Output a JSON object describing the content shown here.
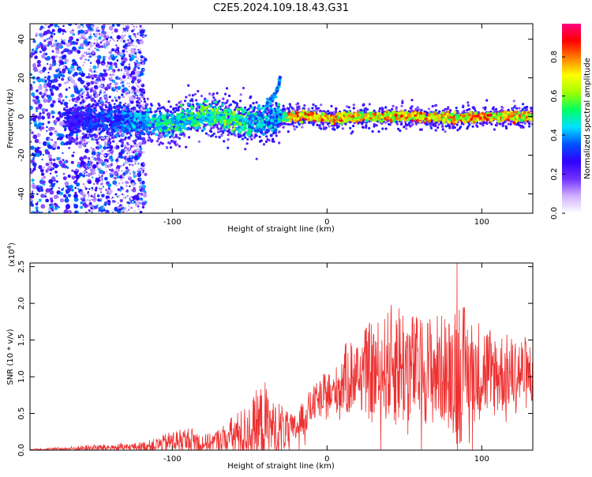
{
  "title": "C2E5.2024.109.18.43.G31",
  "chart_data": [
    {
      "type": "heatmap",
      "title": "C2E5.2024.109.18.43.G31",
      "xlabel": "Height of straight line (km)",
      "ylabel": "Frequency (Hz)",
      "xlim": [
        -192,
        133
      ],
      "ylim": [
        -50,
        48
      ],
      "x_ticks": [
        -100,
        0,
        100
      ],
      "y_ticks": [
        -40,
        -20,
        0,
        20,
        40
      ],
      "colorbar": {
        "label": "Normalized spectral amplitude",
        "range": [
          0,
          0.97
        ],
        "ticks": [
          "0.0",
          "0.2",
          "0.4",
          "0.6",
          "0.8"
        ],
        "colormap": [
          "#ffffff",
          "#d0b0ff",
          "#7030ff",
          "#3000ff",
          "#0050ff",
          "#00e0ff",
          "#00ff60",
          "#a0ff00",
          "#ffff00",
          "#ff8000",
          "#ff0000",
          "#ff0080"
        ]
      },
      "ridge": {
        "x": [
          -165,
          -150,
          -135,
          -120,
          -105,
          -90,
          -75,
          -60,
          -45,
          -35,
          -30,
          -25,
          -10,
          0,
          20,
          40,
          60,
          80,
          100,
          120,
          133
        ],
        "freq": [
          -2,
          -1,
          -2,
          -2,
          -4,
          -1,
          1,
          -1,
          -3,
          -2,
          0,
          0,
          0,
          -1,
          0,
          0,
          0,
          -1,
          0,
          0,
          0
        ],
        "amplitude": [
          0.3,
          0.35,
          0.4,
          0.45,
          0.55,
          0.55,
          0.6,
          0.6,
          0.5,
          0.45,
          0.5,
          0.85,
          0.9,
          0.85,
          0.8,
          0.85,
          0.85,
          0.8,
          0.85,
          0.85,
          0.8
        ]
      },
      "spur": {
        "x": [
          -40,
          -33,
          -30
        ],
        "freq": [
          5,
          12,
          20
        ]
      }
    },
    {
      "type": "line",
      "xlabel": "Height of straight line (km)",
      "ylabel": "SNR (10 * v/v)",
      "y_multiplier": "(x10^4)",
      "xlim": [
        -192,
        133
      ],
      "ylim": [
        0,
        2.55
      ],
      "x_ticks": [
        -100,
        0,
        100
      ],
      "y_ticks": [
        "0.0",
        "0.5",
        "1.0",
        "1.5",
        "2.0",
        "2.5"
      ],
      "color": "#ee3030",
      "envelope": {
        "x": [
          -192,
          -170,
          -150,
          -130,
          -120,
          -110,
          -100,
          -90,
          -85,
          -80,
          -75,
          -70,
          -65,
          -60,
          -55,
          -50,
          -45,
          -40,
          -37,
          -35,
          -30,
          -25,
          -20,
          -15,
          -10,
          -5,
          0,
          5,
          10,
          15,
          20,
          25,
          30,
          35,
          40,
          45,
          50,
          60,
          70,
          80,
          84,
          90,
          100,
          110,
          120,
          125,
          133
        ],
        "base": [
          0.01,
          0.02,
          0.03,
          0.04,
          0.05,
          0.07,
          0.12,
          0.14,
          0.12,
          0.1,
          0.11,
          0.14,
          0.17,
          0.2,
          0.22,
          0.26,
          0.3,
          0.35,
          0.3,
          0.32,
          0.32,
          0.25,
          0.3,
          0.45,
          0.6,
          0.7,
          0.75,
          0.8,
          0.95,
          1.0,
          1.05,
          1.08,
          1.05,
          1.1,
          1.15,
          1.2,
          1.15,
          1.1,
          1.1,
          1.1,
          1.15,
          1.1,
          1.1,
          1.05,
          1.05,
          1.05,
          1.05
        ],
        "amp": [
          0.01,
          0.02,
          0.05,
          0.05,
          0.06,
          0.1,
          0.15,
          0.18,
          0.18,
          0.12,
          0.12,
          0.16,
          0.22,
          0.3,
          0.35,
          0.38,
          0.55,
          0.6,
          0.45,
          0.35,
          0.35,
          0.25,
          0.2,
          0.25,
          0.25,
          0.25,
          0.35,
          0.3,
          0.45,
          0.55,
          0.5,
          0.6,
          0.75,
          0.65,
          0.8,
          0.9,
          0.85,
          0.7,
          0.8,
          0.7,
          1.25,
          0.75,
          0.7,
          0.6,
          0.5,
          0.55,
          0.45
        ]
      },
      "peak": {
        "x": 84,
        "y": 2.55
      }
    }
  ]
}
